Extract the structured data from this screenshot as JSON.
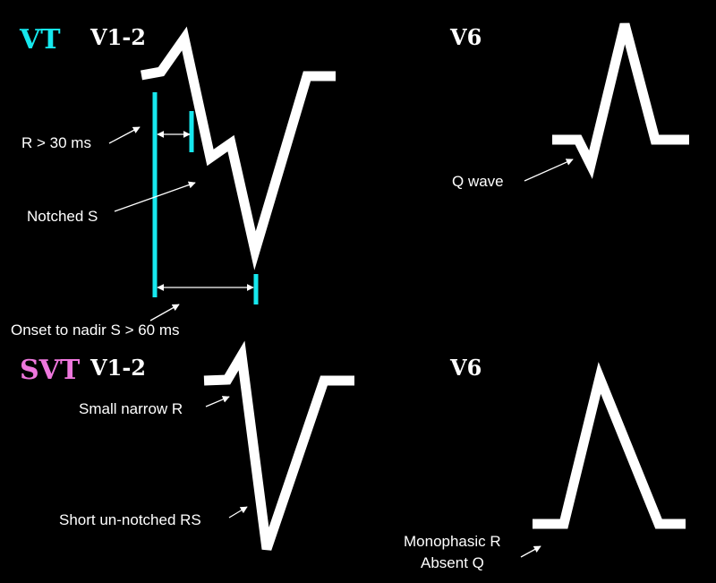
{
  "colors": {
    "background": "#000000",
    "vt_heading": "#16e8ee",
    "svt_heading": "#ee77dd",
    "waveform": "#ffffff",
    "measure_marker": "#16e8ee"
  },
  "vt": {
    "heading": "VT",
    "lead_left": "V1-2",
    "lead_right": "V6",
    "label_r_duration": "R  > 30 ms",
    "label_notched_s": "Notched S",
    "label_onset_nadir": "Onset to nadir S  > 60 ms",
    "label_q_wave": "Q wave"
  },
  "svt": {
    "heading": "SVT",
    "lead_left": "V1-2",
    "lead_right": "V6",
    "label_small_r": "Small narrow R",
    "label_short_rs": "Short un-notched RS",
    "label_monophasic_r": "Monophasic R",
    "label_absent_q": "Absent Q"
  }
}
